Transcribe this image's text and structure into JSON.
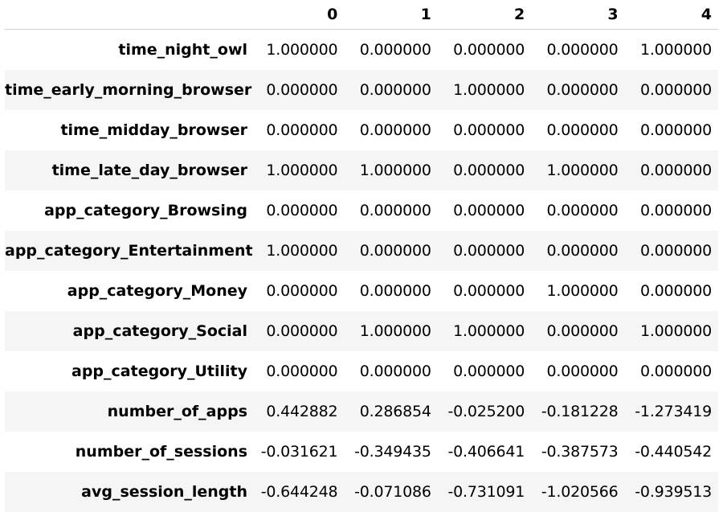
{
  "table": {
    "columns": [
      "0",
      "1",
      "2",
      "3",
      "4"
    ],
    "rows": [
      {
        "label": "time_night_owl",
        "values": [
          "1.000000",
          "0.000000",
          "0.000000",
          "0.000000",
          "1.000000"
        ]
      },
      {
        "label": "time_early_morning_browser",
        "values": [
          "0.000000",
          "0.000000",
          "1.000000",
          "0.000000",
          "0.000000"
        ]
      },
      {
        "label": "time_midday_browser",
        "values": [
          "0.000000",
          "0.000000",
          "0.000000",
          "0.000000",
          "0.000000"
        ]
      },
      {
        "label": "time_late_day_browser",
        "values": [
          "1.000000",
          "1.000000",
          "0.000000",
          "1.000000",
          "0.000000"
        ]
      },
      {
        "label": "app_category_Browsing",
        "values": [
          "0.000000",
          "0.000000",
          "0.000000",
          "0.000000",
          "0.000000"
        ]
      },
      {
        "label": "app_category_Entertainment",
        "values": [
          "1.000000",
          "0.000000",
          "0.000000",
          "0.000000",
          "0.000000"
        ]
      },
      {
        "label": "app_category_Money",
        "values": [
          "0.000000",
          "0.000000",
          "0.000000",
          "1.000000",
          "0.000000"
        ]
      },
      {
        "label": "app_category_Social",
        "values": [
          "0.000000",
          "1.000000",
          "1.000000",
          "0.000000",
          "1.000000"
        ]
      },
      {
        "label": "app_category_Utility",
        "values": [
          "0.000000",
          "0.000000",
          "0.000000",
          "0.000000",
          "0.000000"
        ]
      },
      {
        "label": "number_of_apps",
        "values": [
          "0.442882",
          "0.286854",
          "-0.025200",
          "-0.181228",
          "-1.273419"
        ]
      },
      {
        "label": "number_of_sessions",
        "values": [
          "-0.031621",
          "-0.349435",
          "-0.406641",
          "-0.387573",
          "-0.440542"
        ]
      },
      {
        "label": "avg_session_length",
        "values": [
          "-0.644248",
          "-0.071086",
          "-0.731091",
          "-1.020566",
          "-0.939513"
        ]
      }
    ]
  }
}
